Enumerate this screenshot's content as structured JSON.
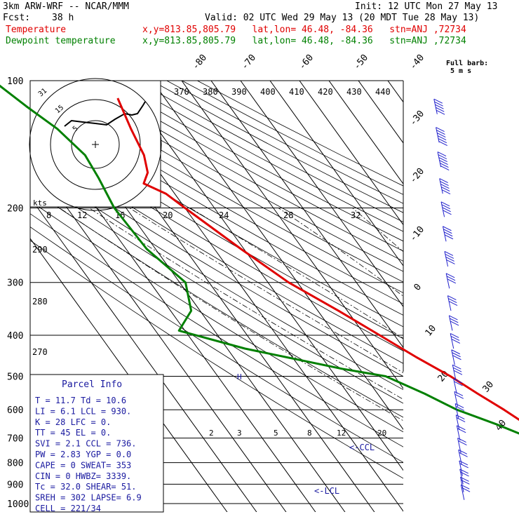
{
  "header": {
    "model": "3km ARW-WRF -- NCAR/MMM",
    "init": "Init: 12 UTC Mon 27 May 13",
    "fcst_label": "Fcst:",
    "fcst_value": "38 h",
    "valid": "Valid: 02 UTC Wed 29 May 13 (20 MDT Tue 28 May 13)"
  },
  "legend": [
    {
      "name": "Temperature",
      "info": "x,y=813.85,805.79   lat,lon= 46.48, -84.36   stn=ANJ ,72734",
      "color": "#e00000"
    },
    {
      "name": "Dewpoint temperature",
      "info": "x,y=813.85,805.79   lat,lon= 46.48, -84.36   stn=ANJ ,72734",
      "color": "#008000"
    }
  ],
  "barb_key": {
    "line1": "Full barb:",
    "line2": "5 m s"
  },
  "parcel_info": {
    "title": "Parcel Info",
    "rows": [
      "T   =   11.7  Td =  10.6",
      "LI  =    6.1  LCL =  930.",
      "K   =     28  LFC =    0.",
      "TT  =     45  EL  =    0.",
      "SVI =    2.1  CCL =  736.",
      "PW  =   2.83  YGP =   0.0",
      "CAPE =     0  SWEAT=  353",
      "CIN =      0  HWBZ= 3339.",
      "Tc  =   32.0  SHEAR=  51.",
      "SREH =   302  LAPSE=  6.9",
      "CELL = 221/34"
    ]
  },
  "hodograph": {
    "axis_label": "kts",
    "ring_labels": [
      "5",
      "15",
      "31"
    ]
  },
  "chart_data": {
    "type": "line",
    "y_axis": "pressure (hPa)",
    "pressure_levels": [
      100,
      200,
      300,
      400,
      500,
      600,
      700,
      800,
      900,
      1000
    ],
    "isotherm_labels": [
      -80,
      -70,
      -60,
      -50,
      -40,
      -30,
      -20,
      -10,
      0,
      10,
      20,
      30,
      40
    ],
    "theta_labels": [
      370,
      380,
      390,
      400,
      410,
      420,
      430,
      440
    ],
    "theta_left_labels": [
      290,
      280,
      270
    ],
    "mixing_ratio_upper_labels": [
      8,
      12,
      16,
      20,
      24,
      28,
      32
    ],
    "mixing_ratio_lower_labels": [
      2,
      3,
      5,
      8,
      12,
      20
    ],
    "annotations": [
      "<-CCL",
      "<-LCL"
    ],
    "series": [
      {
        "name": "Temperature",
        "color": "#e00000",
        "points": [
          [
            110,
            -56
          ],
          [
            130,
            -59
          ],
          [
            150,
            -61
          ],
          [
            165,
            -64
          ],
          [
            175,
            -68
          ],
          [
            185,
            -63
          ],
          [
            200,
            -60
          ],
          [
            250,
            -51
          ],
          [
            300,
            -43
          ],
          [
            350,
            -33
          ],
          [
            400,
            -25
          ],
          [
            450,
            -18
          ],
          [
            500,
            -11
          ],
          [
            550,
            -6
          ],
          [
            600,
            -1
          ],
          [
            650,
            3
          ],
          [
            700,
            6
          ],
          [
            750,
            9
          ],
          [
            800,
            12
          ],
          [
            850,
            13
          ],
          [
            900,
            12.5
          ],
          [
            950,
            12
          ],
          [
            980,
            11.7
          ]
        ]
      },
      {
        "name": "Dewpoint temperature",
        "color": "#008000",
        "points": [
          [
            100,
            -94
          ],
          [
            115,
            -89
          ],
          [
            130,
            -84
          ],
          [
            150,
            -81
          ],
          [
            170,
            -82
          ],
          [
            200,
            -84
          ],
          [
            250,
            -83
          ],
          [
            300,
            -78
          ],
          [
            350,
            -83
          ],
          [
            390,
            -92
          ],
          [
            430,
            -74
          ],
          [
            480,
            -46
          ],
          [
            500,
            -33
          ],
          [
            550,
            -24
          ],
          [
            600,
            -17
          ],
          [
            650,
            -7
          ],
          [
            700,
            1
          ],
          [
            750,
            5
          ],
          [
            800,
            7
          ],
          [
            850,
            9
          ],
          [
            900,
            10.5
          ],
          [
            950,
            10.5
          ],
          [
            980,
            10.6
          ]
        ]
      }
    ],
    "wind_barbs": [
      {
        "p": 120,
        "spd_ms": 25
      },
      {
        "p": 140,
        "spd_ms": 30
      },
      {
        "p": 160,
        "spd_ms": 30
      },
      {
        "p": 185,
        "spd_ms": 25
      },
      {
        "p": 210,
        "spd_ms": 20
      },
      {
        "p": 240,
        "spd_ms": 20
      },
      {
        "p": 275,
        "spd_ms": 20
      },
      {
        "p": 310,
        "spd_ms": 15
      },
      {
        "p": 350,
        "spd_ms": 15
      },
      {
        "p": 390,
        "spd_ms": 15
      },
      {
        "p": 430,
        "spd_ms": 15
      },
      {
        "p": 470,
        "spd_ms": 15
      },
      {
        "p": 510,
        "spd_ms": 15
      },
      {
        "p": 550,
        "spd_ms": 10
      },
      {
        "p": 590,
        "spd_ms": 10
      },
      {
        "p": 630,
        "spd_ms": 10
      },
      {
        "p": 670,
        "spd_ms": 10
      },
      {
        "p": 710,
        "spd_ms": 10
      },
      {
        "p": 760,
        "spd_ms": 10
      },
      {
        "p": 810,
        "spd_ms": 10
      },
      {
        "p": 860,
        "spd_ms": 10
      },
      {
        "p": 900,
        "spd_ms": 10
      },
      {
        "p": 940,
        "spd_ms": 10
      },
      {
        "p": 980,
        "spd_ms": 10
      }
    ]
  }
}
